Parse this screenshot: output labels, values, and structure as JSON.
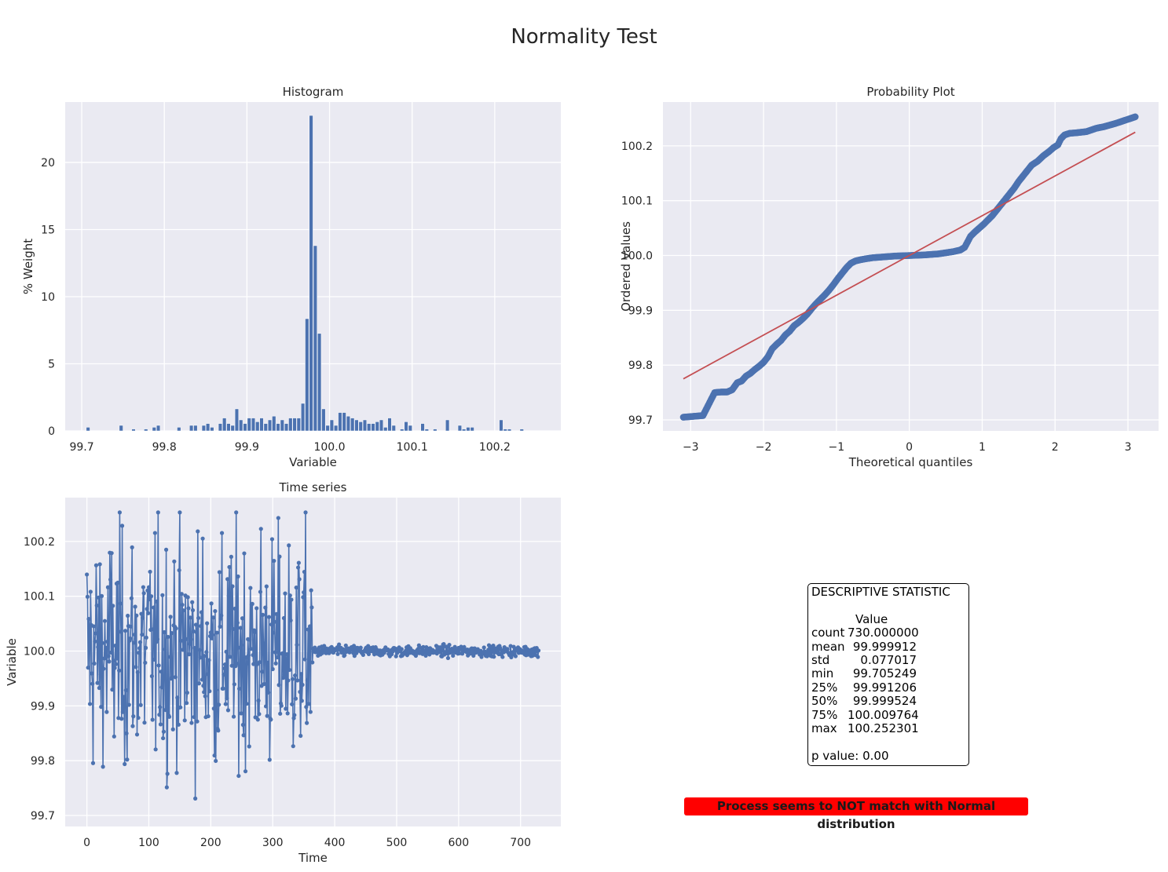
{
  "title": "Normality Test",
  "colors": {
    "axes_bg": "#eaeaf2",
    "grid": "#ffffff",
    "series": "#4c72b0",
    "fit_line": "#c44e52",
    "verdict_bg": "#ff0000"
  },
  "chart_data": [
    {
      "type": "bar",
      "title": "Histogram",
      "xlabel": "Variable",
      "ylabel": "% Weight",
      "xlim": [
        99.68,
        100.28
      ],
      "ylim": [
        0,
        24.5
      ],
      "xticks": [
        "99.7",
        "99.8",
        "99.9",
        "100.0",
        "100.1",
        "100.2"
      ],
      "yticks": [
        "0",
        "5",
        "10",
        "15",
        "20"
      ],
      "grid": true,
      "bin_width": 0.005,
      "bin_centers": [
        99.708,
        99.713,
        99.718,
        99.723,
        99.728,
        99.733,
        99.738,
        99.743,
        99.748,
        99.753,
        99.758,
        99.763,
        99.768,
        99.773,
        99.778,
        99.783,
        99.788,
        99.793,
        99.798,
        99.803,
        99.808,
        99.813,
        99.818,
        99.823,
        99.828,
        99.833,
        99.838,
        99.843,
        99.848,
        99.853,
        99.858,
        99.863,
        99.868,
        99.873,
        99.878,
        99.883,
        99.888,
        99.893,
        99.898,
        99.903,
        99.908,
        99.913,
        99.918,
        99.923,
        99.928,
        99.933,
        99.938,
        99.943,
        99.948,
        99.953,
        99.958,
        99.963,
        99.968,
        99.973,
        99.978,
        99.983,
        99.988,
        99.993,
        99.998,
        100.003,
        100.008,
        100.013,
        100.018,
        100.023,
        100.028,
        100.033,
        100.038,
        100.043,
        100.048,
        100.053,
        100.058,
        100.063,
        100.068,
        100.073,
        100.078,
        100.083,
        100.088,
        100.093,
        100.098,
        100.103,
        100.108,
        100.113,
        100.118,
        100.123,
        100.128,
        100.133,
        100.138,
        100.143,
        100.148,
        100.153,
        100.158,
        100.163,
        100.168,
        100.173,
        100.178,
        100.183,
        100.188,
        100.193,
        100.198,
        100.203,
        100.208,
        100.213,
        100.218,
        100.223,
        100.228,
        100.233,
        100.238,
        100.243,
        100.248
      ],
      "values": [
        0.27,
        0,
        0,
        0,
        0,
        0,
        0,
        0,
        0.41,
        0,
        0,
        0.14,
        0,
        0,
        0.14,
        0,
        0.27,
        0.41,
        0,
        0,
        0,
        0,
        0.27,
        0,
        0,
        0.41,
        0.41,
        0,
        0.41,
        0.55,
        0.27,
        0,
        0.55,
        0.96,
        0.55,
        0.41,
        1.64,
        0.82,
        0.55,
        0.96,
        0.96,
        0.68,
        0.96,
        0.55,
        0.82,
        1.1,
        0.55,
        0.82,
        0.55,
        0.96,
        0.96,
        0.96,
        2.05,
        8.36,
        23.5,
        13.8,
        7.26,
        1.64,
        0.41,
        0.82,
        0.41,
        1.37,
        1.37,
        1.1,
        0.96,
        0.82,
        0.68,
        0.82,
        0.55,
        0.55,
        0.68,
        0.82,
        0.27,
        0.96,
        0.41,
        0,
        0.14,
        0.68,
        0.41,
        0,
        0,
        0.55,
        0.14,
        0,
        0.14,
        0,
        0,
        0.82,
        0,
        0,
        0.41,
        0.14,
        0.27,
        0.27,
        0,
        0,
        0,
        0,
        0,
        0,
        0.82,
        0.14,
        0.14,
        0,
        0,
        0.14
      ],
      "ticks_x": [
        99.7,
        99.8,
        99.9,
        100.0,
        100.1,
        100.2
      ],
      "ticks_y": [
        0,
        5,
        10,
        15,
        20
      ]
    },
    {
      "type": "scatter",
      "title": "Probability Plot",
      "xlabel": "Theoretical quantiles",
      "ylabel": "Ordered Values",
      "xlim": [
        -3.38,
        3.42
      ],
      "ylim": [
        99.68,
        100.28
      ],
      "xticks": [
        "−3",
        "−2",
        "−1",
        "0",
        "1",
        "2",
        "3"
      ],
      "yticks": [
        "99.7",
        "99.8",
        "99.9",
        "100.0",
        "100.1",
        "100.2"
      ],
      "ticks_x": [
        -3,
        -2,
        -1,
        0,
        1,
        2,
        3
      ],
      "ticks_y": [
        99.7,
        99.8,
        99.9,
        100.0,
        100.1,
        100.2
      ],
      "grid": true,
      "fit_line": {
        "x": [
          -3.1,
          3.1
        ],
        "y": [
          99.775,
          100.225
        ]
      },
      "points": [
        [
          -3.1,
          99.705
        ],
        [
          -2.83,
          99.708
        ],
        [
          -2.67,
          99.75
        ],
        [
          -2.58,
          99.751
        ],
        [
          -2.5,
          99.751
        ],
        [
          -2.43,
          99.755
        ],
        [
          -2.36,
          99.768
        ],
        [
          -2.3,
          99.771
        ],
        [
          -2.24,
          99.78
        ],
        [
          -2.18,
          99.785
        ],
        [
          -2.12,
          99.792
        ],
        [
          -2.06,
          99.798
        ],
        [
          -2.0,
          99.805
        ],
        [
          -1.94,
          99.815
        ],
        [
          -1.88,
          99.83
        ],
        [
          -1.82,
          99.838
        ],
        [
          -1.76,
          99.845
        ],
        [
          -1.7,
          99.855
        ],
        [
          -1.64,
          99.862
        ],
        [
          -1.58,
          99.872
        ],
        [
          -1.52,
          99.878
        ],
        [
          -1.46,
          99.885
        ],
        [
          -1.4,
          99.893
        ],
        [
          -1.34,
          99.903
        ],
        [
          -1.28,
          99.912
        ],
        [
          -1.22,
          99.92
        ],
        [
          -1.16,
          99.928
        ],
        [
          -1.1,
          99.937
        ],
        [
          -1.04,
          99.947
        ],
        [
          -0.98,
          99.958
        ],
        [
          -0.92,
          99.968
        ],
        [
          -0.86,
          99.978
        ],
        [
          -0.8,
          99.986
        ],
        [
          -0.74,
          99.99
        ],
        [
          -0.68,
          99.992
        ],
        [
          -0.6,
          99.994
        ],
        [
          -0.5,
          99.996
        ],
        [
          -0.4,
          99.997
        ],
        [
          -0.3,
          99.998
        ],
        [
          -0.2,
          99.999
        ],
        [
          -0.1,
          99.9995
        ],
        [
          0,
          100.0
        ],
        [
          0.1,
          100.0005
        ],
        [
          0.2,
          100.001
        ],
        [
          0.3,
          100.002
        ],
        [
          0.4,
          100.003
        ],
        [
          0.5,
          100.005
        ],
        [
          0.6,
          100.007
        ],
        [
          0.7,
          100.01
        ],
        [
          0.76,
          100.015
        ],
        [
          0.8,
          100.025
        ],
        [
          0.84,
          100.035
        ],
        [
          0.9,
          100.043
        ],
        [
          0.96,
          100.05
        ],
        [
          1.02,
          100.057
        ],
        [
          1.08,
          100.065
        ],
        [
          1.14,
          100.073
        ],
        [
          1.2,
          100.083
        ],
        [
          1.26,
          100.093
        ],
        [
          1.32,
          100.103
        ],
        [
          1.38,
          100.113
        ],
        [
          1.44,
          100.123
        ],
        [
          1.5,
          100.135
        ],
        [
          1.56,
          100.145
        ],
        [
          1.62,
          100.155
        ],
        [
          1.68,
          100.165
        ],
        [
          1.76,
          100.172
        ],
        [
          1.84,
          100.182
        ],
        [
          1.92,
          100.19
        ],
        [
          1.98,
          100.197
        ],
        [
          2.04,
          100.202
        ],
        [
          2.08,
          100.213
        ],
        [
          2.13,
          100.22
        ],
        [
          2.2,
          100.223
        ],
        [
          2.3,
          100.224
        ],
        [
          2.43,
          100.226
        ],
        [
          2.56,
          100.232
        ],
        [
          2.67,
          100.235
        ],
        [
          2.83,
          100.241
        ],
        [
          3.1,
          100.253
        ]
      ]
    },
    {
      "type": "line",
      "title": "Time series",
      "xlabel": "Time",
      "ylabel": "Variable",
      "xlim": [
        -35,
        765
      ],
      "ylim": [
        99.68,
        100.28
      ],
      "xticks": [
        "0",
        "100",
        "200",
        "300",
        "400",
        "500",
        "600",
        "700"
      ],
      "yticks": [
        "99.7",
        "99.8",
        "99.9",
        "100.0",
        "100.1",
        "100.2"
      ],
      "ticks_x": [
        0,
        100,
        200,
        300,
        400,
        500,
        600,
        700
      ],
      "ticks_y": [
        99.7,
        99.8,
        99.9,
        100.0,
        100.1,
        100.2
      ],
      "grid": true,
      "n_points": 730,
      "phase1_end": 365,
      "phase1_std": 0.105,
      "phase2_std": 0.005,
      "mean": 100.0
    }
  ],
  "stats": {
    "title": "DESCRIPTIVE STATISTIC",
    "header": "Value",
    "rows": [
      {
        "k": "count",
        "v": "730.000000"
      },
      {
        "k": "mean",
        "v": "99.999912"
      },
      {
        "k": "std",
        "v": "0.077017"
      },
      {
        "k": "min",
        "v": "99.705249"
      },
      {
        "k": "25%",
        "v": "99.991206"
      },
      {
        "k": "50%",
        "v": "99.999524"
      },
      {
        "k": "75%",
        "v": "100.009764"
      },
      {
        "k": "max",
        "v": "100.252301"
      }
    ],
    "p_value": "p value: 0.00"
  },
  "verdict": "Process seems to NOT match with Normal distribution"
}
